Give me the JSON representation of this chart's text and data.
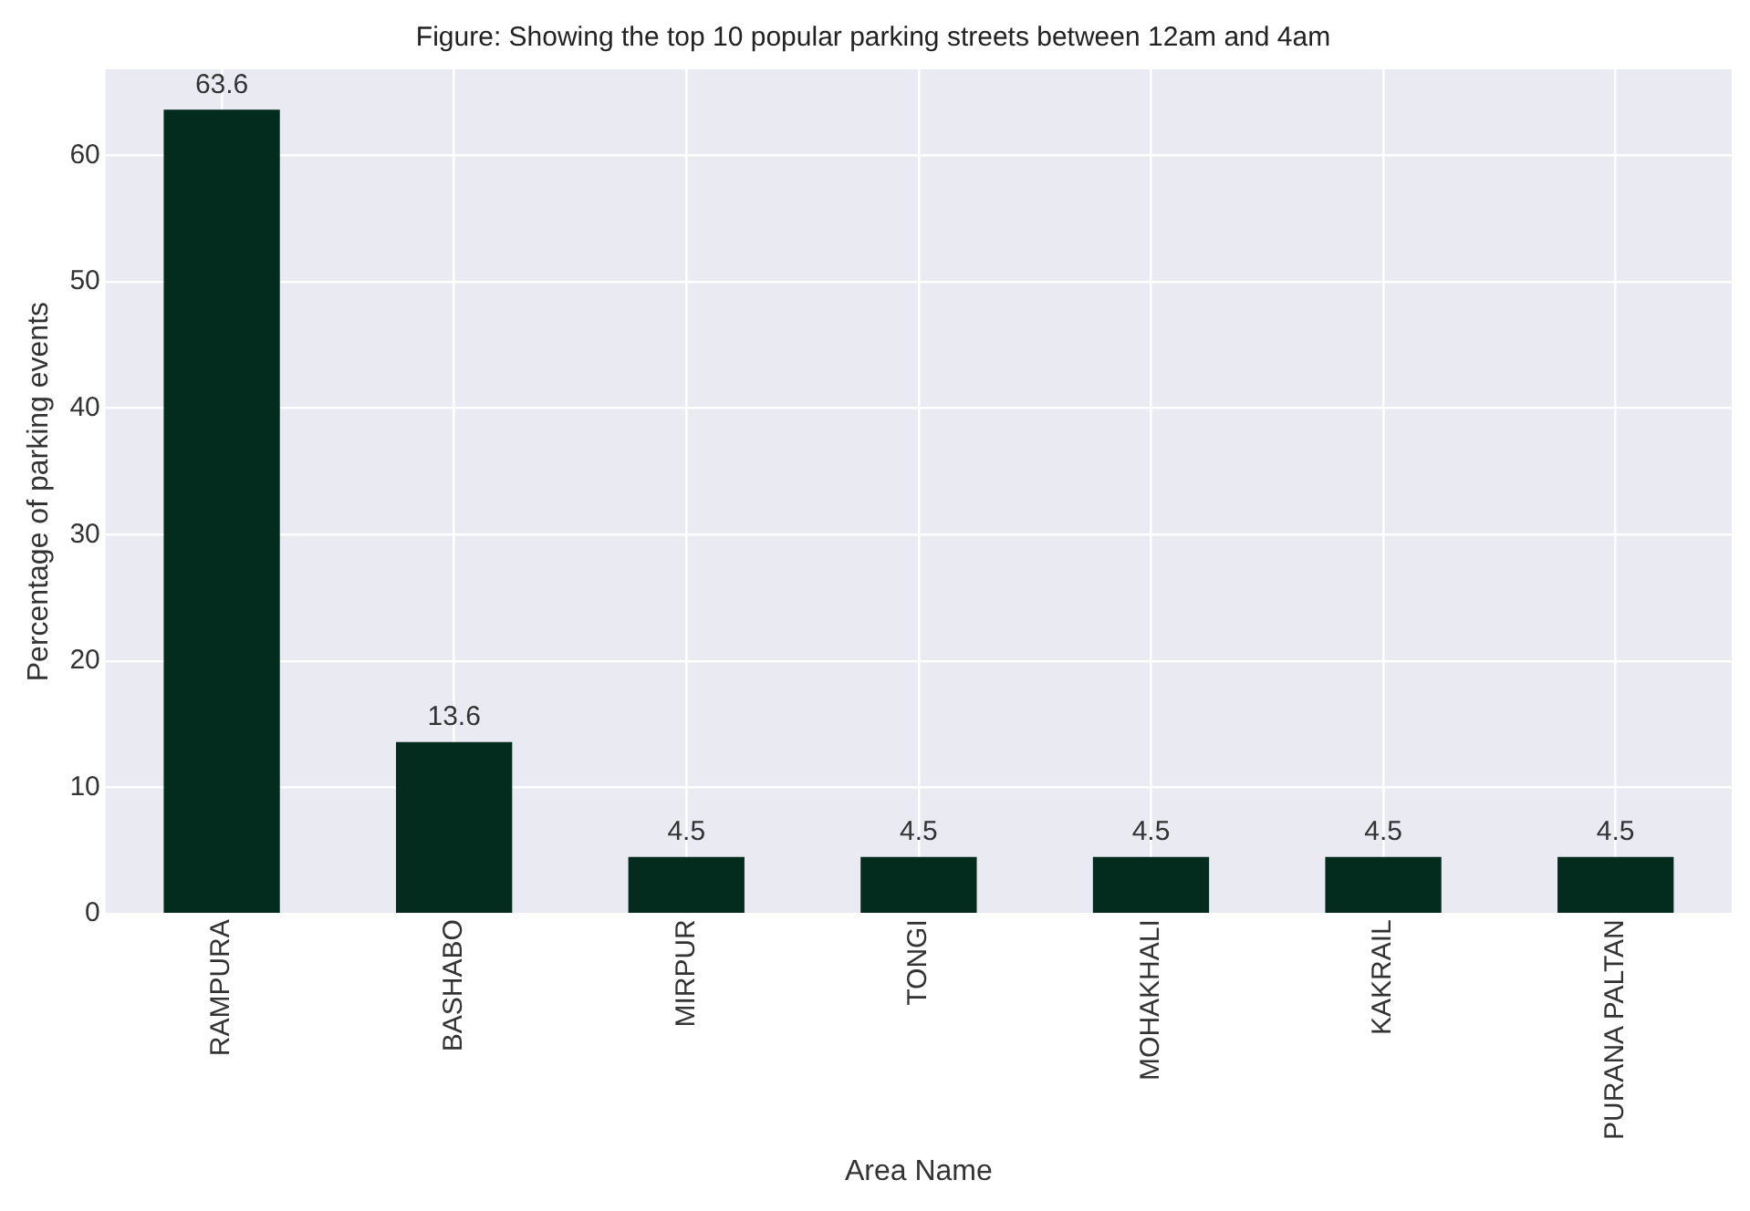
{
  "chart_data": {
    "type": "bar",
    "title": "Figure: Showing the top 10 popular parking streets between 12am and 4am",
    "xlabel": "Area Name",
    "ylabel": "Percentage of parking events",
    "categories": [
      "RAMPURA",
      "BASHABO",
      "MIRPUR",
      "TONGI",
      "MOHAKHALI",
      "KAKRAIL",
      "PURANA PALTAN"
    ],
    "values": [
      63.6,
      13.6,
      4.5,
      4.5,
      4.5,
      4.5,
      4.5
    ],
    "color": "#032b1e",
    "ylim": [
      0,
      66.8
    ],
    "yticks": [
      0,
      10,
      20,
      30,
      40,
      50,
      60
    ],
    "grid": true,
    "data_labels": true,
    "legend": false
  }
}
